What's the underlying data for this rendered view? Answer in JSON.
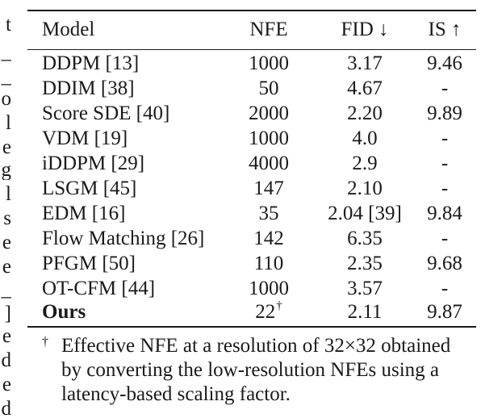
{
  "margin_fragments": [
    "t",
    "_",
    "_",
    "o",
    "l",
    "e",
    "g",
    "l",
    "s",
    "e",
    "e",
    "_",
    "]",
    "e",
    "d",
    "e",
    "d"
  ],
  "table": {
    "headers": {
      "model": "Model",
      "nfe": "NFE",
      "fid": "FID ↓",
      "is": "IS ↑"
    },
    "rows": [
      {
        "model": "DDPM [13]",
        "nfe": "1000",
        "fid": "3.17",
        "is": "9.46"
      },
      {
        "model": "DDIM [38]",
        "nfe": "50",
        "fid": "4.67",
        "is": "-"
      },
      {
        "model": "Score SDE [40]",
        "nfe": "2000",
        "fid": "2.20",
        "is": "9.89"
      },
      {
        "model": "VDM [19]",
        "nfe": "1000",
        "fid": "4.0",
        "is": "-"
      },
      {
        "model": "iDDPM [29]",
        "nfe": "4000",
        "fid": "2.9",
        "is": "-"
      },
      {
        "model": "LSGM [45]",
        "nfe": "147",
        "fid": "2.10",
        "is": "-"
      },
      {
        "model": "EDM [16]",
        "nfe": "35",
        "fid": "2.04 [39]",
        "is": "9.84"
      },
      {
        "model": "Flow Matching [26]",
        "nfe": "142",
        "fid": "6.35",
        "is": "-"
      },
      {
        "model": "PFGM [50]",
        "nfe": "110",
        "fid": "2.35",
        "is": "9.68"
      },
      {
        "model": "OT-CFM [44]",
        "nfe": "1000",
        "fid": "3.57",
        "is": "-"
      }
    ],
    "ours": {
      "model": "Ours",
      "nfe": "22",
      "nfe_mark": "†",
      "fid": "2.11",
      "is": "9.87"
    }
  },
  "footnote": {
    "mark": "†",
    "lines": [
      "Effective NFE at a resolution of 32×32 obtained",
      "by converting the low-resolution NFEs using a",
      "latency-based scaling factor."
    ]
  }
}
